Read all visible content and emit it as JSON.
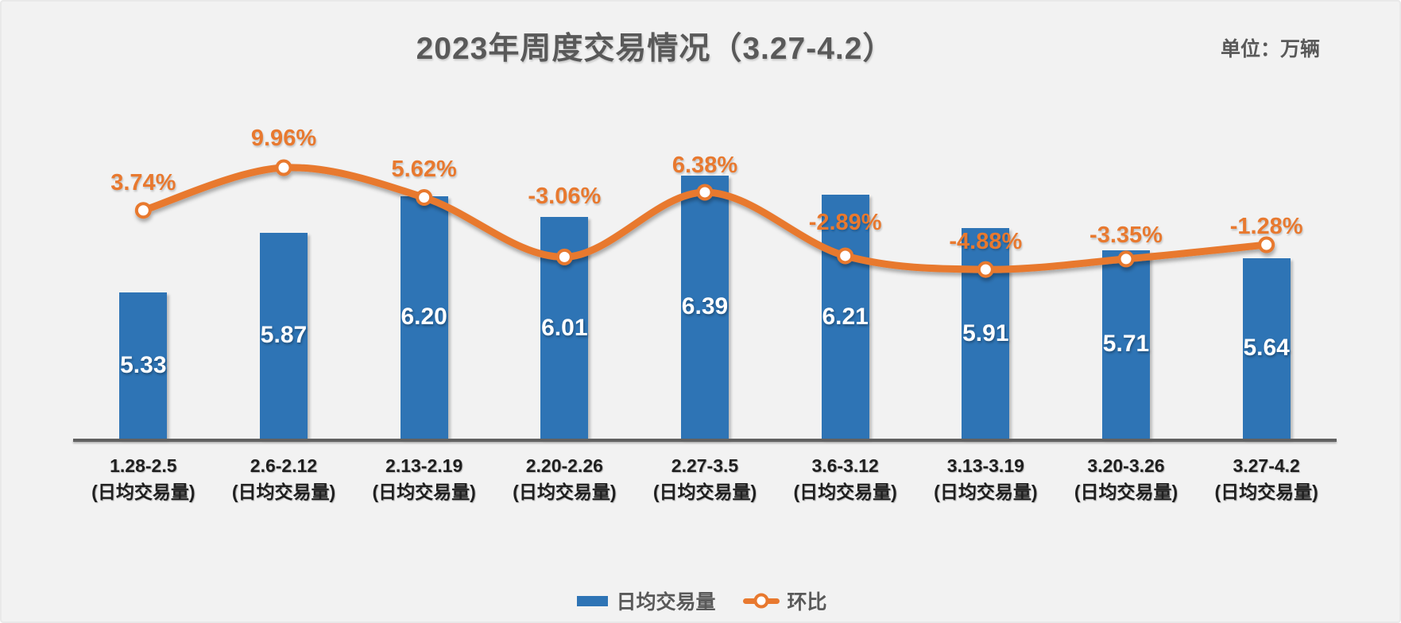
{
  "window": {
    "title": "2023年周度交易情况（3.27-4.2）",
    "unit_label": "单位：万辆"
  },
  "legend": {
    "bar_label": "日均交易量",
    "line_label": "环比",
    "position": "bottom"
  },
  "colors": {
    "bar": "#2e74b5",
    "line": "#e8792f",
    "marker_fill": "#ffffff",
    "bar_value_text": "#ffffff",
    "title_text": "#595959",
    "tick_text": "#1f1f1f",
    "axis_line": "#616161",
    "background": "#f2f2f2"
  },
  "chart_data": {
    "type": "bar",
    "combo": "bar+line",
    "title": "2023年周度交易情况（3.27-4.2）",
    "unit": "万辆",
    "categories": [
      "1.28-2.5",
      "2.6-2.12",
      "2.13-2.19",
      "2.20-2.26",
      "2.27-3.5",
      "3.6-3.12",
      "3.13-3.19",
      "3.20-3.26",
      "3.27-4.2"
    ],
    "category_sublabel": "(日均交易量)",
    "series": [
      {
        "name": "日均交易量",
        "type": "bar",
        "values": [
          5.33,
          5.87,
          6.2,
          6.01,
          6.39,
          6.21,
          5.91,
          5.71,
          5.64
        ],
        "labels": [
          "5.33",
          "5.87",
          "6.20",
          "6.01",
          "6.39",
          "6.21",
          "5.91",
          "5.71",
          "5.64"
        ]
      },
      {
        "name": "环比",
        "type": "line",
        "values": [
          3.74,
          9.96,
          5.62,
          -3.06,
          6.38,
          -2.89,
          -4.88,
          -3.35,
          -1.28
        ],
        "labels": [
          "3.74%",
          "9.96%",
          "5.62%",
          "-3.06%",
          "6.38%",
          "-2.89%",
          "-4.88%",
          "-3.35%",
          "-1.28%"
        ]
      }
    ],
    "xlabel": "",
    "ylabel": "",
    "y_axis_visible": false,
    "bar_axis_min_implied": 4.0,
    "grid": false,
    "legend_position": "bottom"
  }
}
